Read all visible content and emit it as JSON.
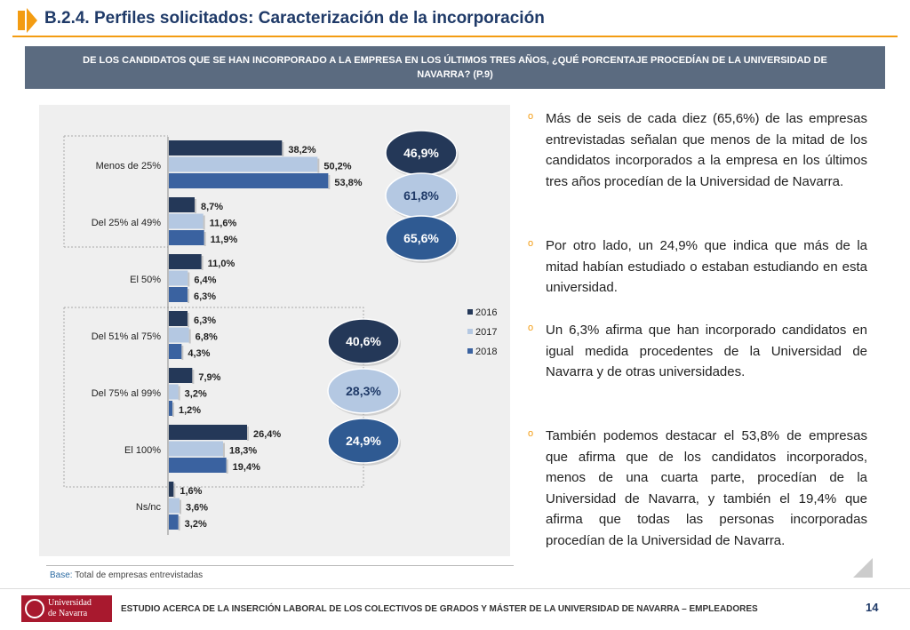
{
  "header": {
    "title": "B.2.4. Perfiles solicitados: Caracterización de la incorporación"
  },
  "question": "DE LOS CANDIDATOS QUE SE HAN INCORPORADO A LA EMPRESA EN LOS ÚLTIMOS TRES AÑOS, ¿QUÉ PORCENTAJE PROCEDÍAN DE LA UNIVERSIDAD DE NAVARRA? (P.9)",
  "chart_data": {
    "type": "bar",
    "orientation": "horizontal",
    "categories": [
      "Menos de 25%",
      "Del 25% al 49%",
      "El 50%",
      "Del 51% al 75%",
      "Del 75% al 99%",
      "El 100%",
      "Ns/nc"
    ],
    "series": [
      {
        "name": "2016",
        "color": "#243858",
        "values": [
          38.2,
          8.7,
          11.0,
          6.3,
          7.9,
          26.4,
          1.6
        ],
        "labels": [
          "38,2%",
          "8,7%",
          "11,0%",
          "6,3%",
          "7,9%",
          "26,4%",
          "1,6%"
        ]
      },
      {
        "name": "2017",
        "color": "#b4c8e2",
        "values": [
          50.2,
          11.6,
          6.4,
          6.8,
          3.2,
          18.3,
          3.6
        ],
        "labels": [
          "50,2%",
          "11,6%",
          "6,4%",
          "6,8%",
          "3,2%",
          "18,3%",
          "3,6%"
        ]
      },
      {
        "name": "2018",
        "color": "#3a62a0",
        "values": [
          53.8,
          11.9,
          6.3,
          4.3,
          1.2,
          19.4,
          3.2
        ],
        "labels": [
          "53,8%",
          "11,9%",
          "6,3%",
          "4,3%",
          "1,2%",
          "19,4%",
          "3,2%"
        ]
      }
    ],
    "xlim": [
      0,
      60
    ],
    "legend": "right",
    "annotations": {
      "upper_group": [
        {
          "label": "46,9%",
          "year": "2016",
          "fill": "#243858",
          "text_color": "#ffffff"
        },
        {
          "label": "61,8%",
          "year": "2017",
          "fill": "#b4c8e2",
          "text_color": "#1f3a68"
        },
        {
          "label": "65,6%",
          "year": "2018",
          "fill": "#2f5a92",
          "text_color": "#ffffff"
        }
      ],
      "lower_group": [
        {
          "label": "40,6%",
          "year": "2016",
          "fill": "#243858",
          "text_color": "#ffffff"
        },
        {
          "label": "28,3%",
          "year": "2017",
          "fill": "#b4c8e2",
          "text_color": "#1f3a68"
        },
        {
          "label": "24,9%",
          "year": "2018",
          "fill": "#2f5a92",
          "text_color": "#ffffff"
        }
      ]
    }
  },
  "bullets": [
    "Más de seis de cada diez (65,6%) de las empresas entrevistadas señalan que menos de la mitad de los candidatos incorporados a la empresa en los últimos tres años procedían de la Universidad de Navarra.",
    "Por otro lado, un 24,9% que indica que más de la mitad habían estudiado o estaban estudiando en esta universidad.",
    "Un 6,3% afirma que han incorporado candidatos en igual medida procedentes de la Universidad de Navarra y de otras universidades.",
    "También podemos destacar el 53,8% de empresas que afirma que de los candidatos incorporados, menos de una cuarta parte, procedían de la Universidad de Navarra, y también el 19,4% que afirma que todas las personas incorporadas procedían de la Universidad de Navarra."
  ],
  "bullet_marker": "o",
  "base": {
    "label": "Base:",
    "text": " Total de empresas entrevistadas"
  },
  "footer": {
    "logo_line1": "Universidad",
    "logo_line2": "de Navarra",
    "text": "ESTUDIO ACERCA DE LA INSERCIÓN LABORAL DE LOS COLECTIVOS DE GRADOS Y MÁSTER DE LA UNIVERSIDAD DE NAVARRA – EMPLEADORES",
    "page": "14"
  },
  "colors": {
    "accent": "#f39c12",
    "title": "#1f3a68",
    "question_bg": "#5b6b80"
  }
}
